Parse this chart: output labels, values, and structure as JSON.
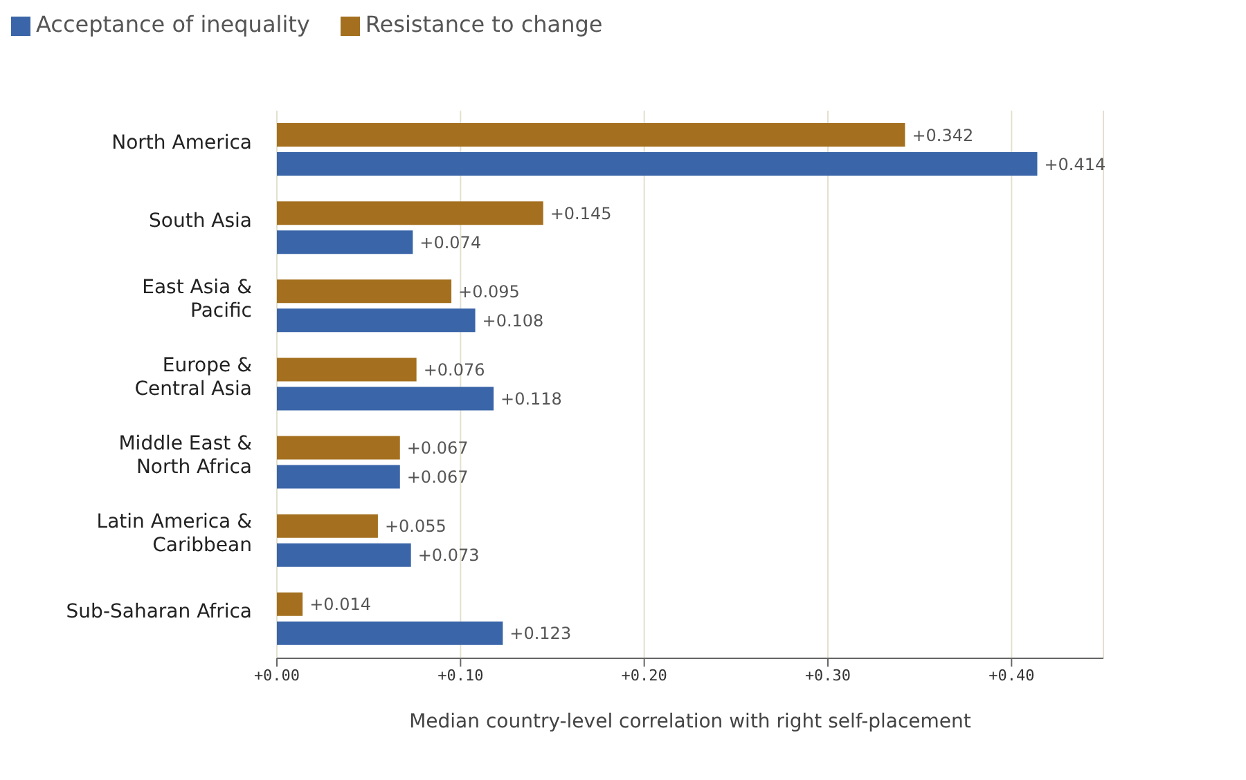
{
  "chart_data": {
    "type": "bar",
    "orientation": "horizontal",
    "xlabel": "Median country-level correlation with right self-placement",
    "categories": [
      "North America",
      "South Asia",
      "East Asia & Pacific",
      "Europe & Central Asia",
      "Middle East & North Africa",
      "Latin America & Caribbean",
      "Sub-Saharan Africa"
    ],
    "series": [
      {
        "name": "Resistance to change",
        "color": "#a4701f",
        "values": [
          0.342,
          0.145,
          0.095,
          0.076,
          0.067,
          0.055,
          0.014
        ],
        "value_labels": [
          "+0.342",
          "+0.145",
          "+0.095",
          "+0.076",
          "+0.067",
          "+0.055",
          "+0.014"
        ]
      },
      {
        "name": "Acceptance of inequality",
        "color": "#3a65a8",
        "values": [
          0.414,
          0.074,
          0.108,
          0.118,
          0.067,
          0.073,
          0.123
        ],
        "value_labels": [
          "+0.414",
          "+0.074",
          "+0.108",
          "+0.118",
          "+0.067",
          "+0.073",
          "+0.123"
        ]
      }
    ],
    "xlim": [
      0,
      0.45
    ],
    "xticks": [
      {
        "value": 0,
        "label": "+0.00"
      },
      {
        "value": 0.1,
        "label": "+0.10"
      },
      {
        "value": 0.2,
        "label": "+0.20"
      },
      {
        "value": 0.3,
        "label": "+0.30"
      },
      {
        "value": 0.4,
        "label": "+0.40"
      }
    ],
    "grid": "x",
    "legend": "top left"
  }
}
